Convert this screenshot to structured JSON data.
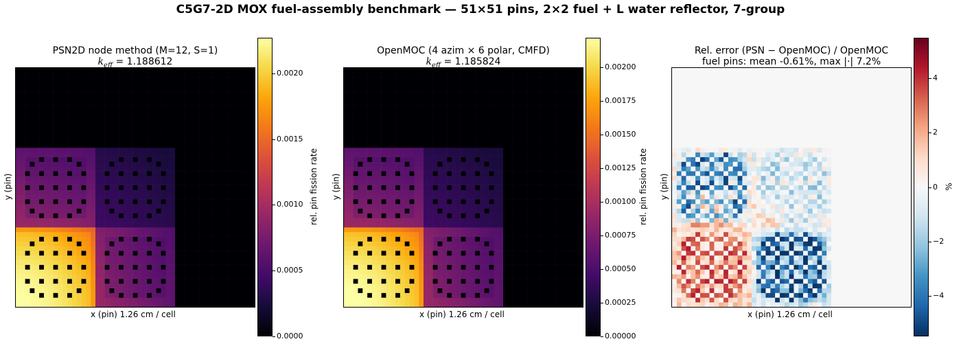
{
  "figure": {
    "title": "C5G7-2D MOX fuel-assembly benchmark — 51×51 pins, 2×2 fuel + L water reflector, 7-group"
  },
  "chart_data": [
    {
      "type": "heatmap",
      "title_line1": "PSN2D node method  (M=12, S=1)",
      "keff_label": "k",
      "keff_sub": "eff",
      "keff_value": " = 1.188612",
      "xlabel": "x (pin)   1.26 cm / cell",
      "ylabel": "y (pin)",
      "colorbar_label": "rel. pin fission rate",
      "colormap": "inferno",
      "vmin": 0,
      "vmax": 0.00227,
      "colorbar_ticks": [
        "0.0000",
        "0.0005",
        "0.0010",
        "0.0015",
        "0.0020"
      ],
      "colorbar_tick_values": [
        0,
        0.0005,
        0.001,
        0.0015,
        0.002
      ],
      "grid_size": 51,
      "fuel_region_pins": 34,
      "assembly_peak_values": {
        "inner_uo2": 0.00227,
        "mox_bottom_right": 0.00092,
        "mox_top_left": 0.00075,
        "outer_uo2": 0.0004
      }
    },
    {
      "type": "heatmap",
      "title_line1": "OpenMOC  (4 azim × 6 polar, CMFD)",
      "keff_label": "k",
      "keff_sub": "eff",
      "keff_value": " = 1.185824",
      "xlabel": "x (pin)   1.26 cm / cell",
      "ylabel": "y (pin)",
      "colorbar_label": "rel. pin fission rate",
      "colormap": "inferno",
      "vmin": 0,
      "vmax": 0.00222,
      "colorbar_ticks": [
        "0.00000",
        "0.00025",
        "0.00050",
        "0.00075",
        "0.00100",
        "0.00125",
        "0.00150",
        "0.00175",
        "0.00200"
      ],
      "colorbar_tick_values": [
        0,
        0.00025,
        0.0005,
        0.00075,
        0.001,
        0.00125,
        0.0015,
        0.00175,
        0.002
      ],
      "grid_size": 51,
      "fuel_region_pins": 34
    },
    {
      "type": "heatmap",
      "title_line1": "Rel. error  (PSN − OpenMOC) / OpenMOC",
      "title_line2": "fuel pins: mean -0.61%,  max |·| 7.2%",
      "xlabel": "x (pin)   1.26 cm / cell",
      "ylabel": "y (pin)",
      "colorbar_label": "%",
      "colormap": "RdBu_r",
      "vmin": -5.5,
      "vmax": 5.5,
      "colorbar_ticks": [
        "4",
        "2",
        "0",
        "−2",
        "−4"
      ],
      "colorbar_tick_values": [
        4,
        2,
        0,
        -2,
        -4
      ],
      "mean_error_percent": -0.61,
      "max_abs_error_percent": 7.2
    }
  ]
}
